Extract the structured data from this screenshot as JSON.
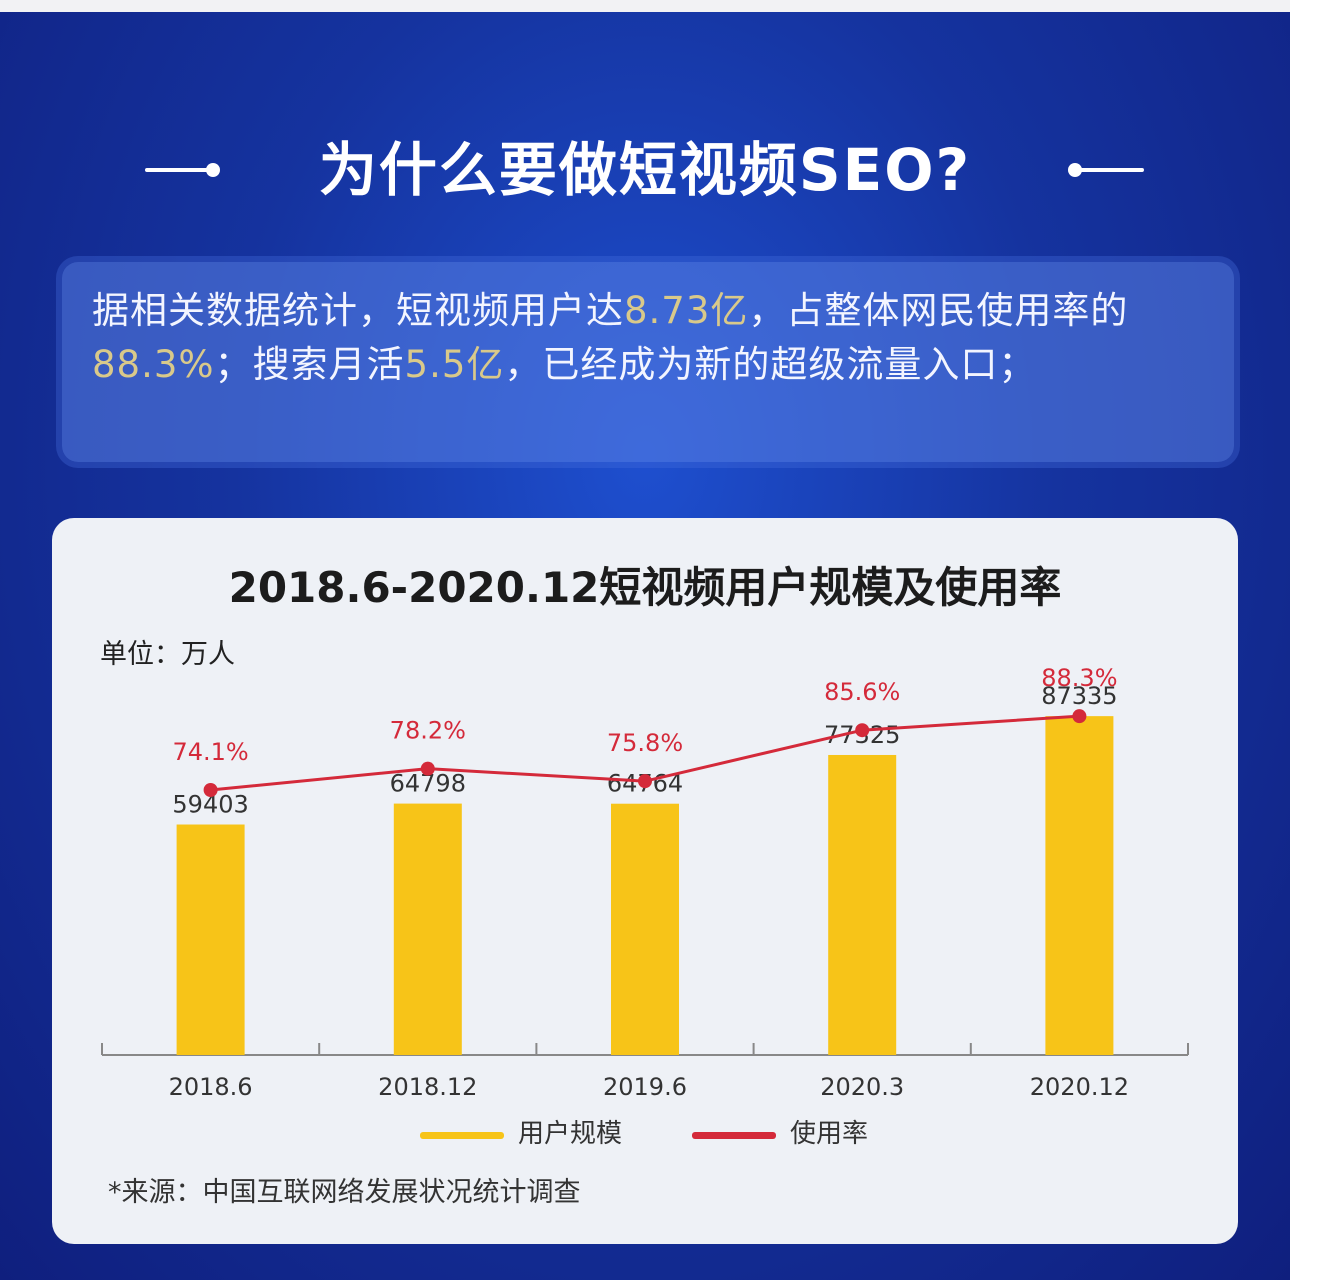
{
  "header": {
    "title": "为什么要做短视频SEO?"
  },
  "intro": {
    "segments": [
      {
        "text": "据相关数据统计，短视频用户达",
        "highlight": false
      },
      {
        "text": "8.73亿",
        "highlight": true
      },
      {
        "text": "，占整体网民使用率的",
        "highlight": false
      },
      {
        "text": "88.3%",
        "highlight": true
      },
      {
        "text": "；搜索月活",
        "highlight": false
      },
      {
        "text": "5.5亿",
        "highlight": true
      },
      {
        "text": "，已经成为新的超级流量入口；",
        "highlight": false
      }
    ]
  },
  "chart_data": {
    "type": "bar",
    "title": "2018.6-2020.12短视频用户规模及使用率",
    "unit_label": "单位：万人",
    "categories": [
      "2018.6",
      "2018.12",
      "2019.6",
      "2020.3",
      "2020.12"
    ],
    "series": [
      {
        "name": "用户规模",
        "type": "bar",
        "values": [
          59403,
          64798,
          64764,
          77325,
          87335
        ],
        "color": "#f7c418"
      },
      {
        "name": "使用率",
        "type": "line",
        "values": [
          74.1,
          78.2,
          75.8,
          85.6,
          88.3
        ],
        "unit": "%",
        "color": "#d42a3a"
      }
    ],
    "bar_labels": [
      "59403",
      "64798",
      "64764",
      "77325",
      "87335"
    ],
    "line_labels": [
      "74.1%",
      "78.2%",
      "75.8%",
      "85.6%",
      "88.3%"
    ],
    "legend_position": "bottom",
    "grid": false,
    "source": "*来源：中国互联网络发展状况统计调查"
  },
  "colors": {
    "panel_bg": "#15339f",
    "card_bg": "#eef1f6",
    "bar": "#f7c418",
    "line": "#d42a3a",
    "highlight_text": "#d9c98a"
  }
}
